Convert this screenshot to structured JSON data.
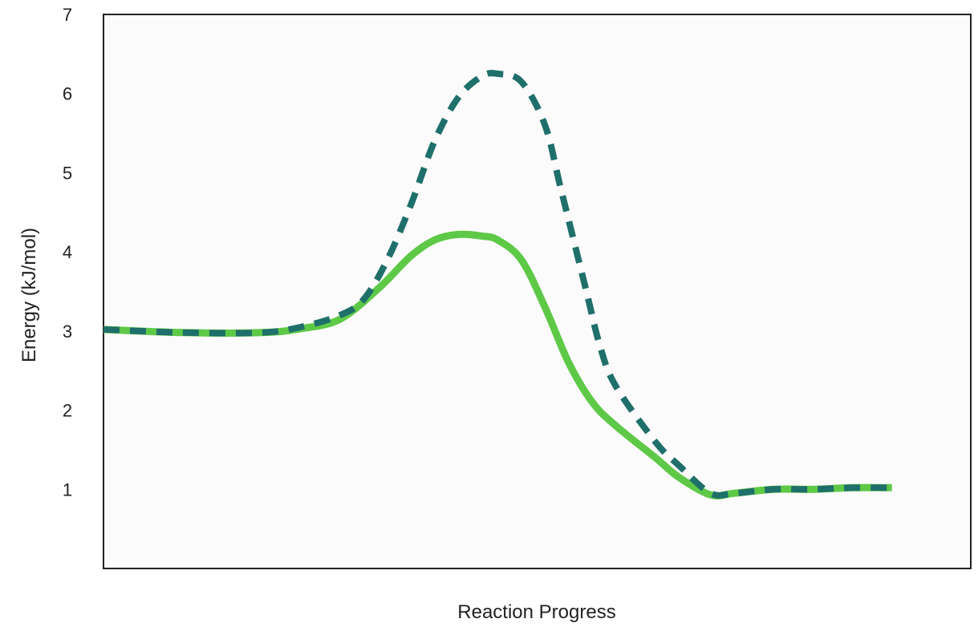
{
  "chart_data": {
    "type": "line",
    "title": "",
    "xlabel": "Reaction Progress",
    "ylabel": "Energy (kJ/mol)",
    "ylim": [
      0,
      7
    ],
    "xlim": [
      0,
      1.1
    ],
    "yticks": [
      "1",
      "2",
      "3",
      "4",
      "5",
      "6",
      "7"
    ],
    "grid": false,
    "legend": "none",
    "series": [
      {
        "style": "dashed",
        "color": "#1f6f6b",
        "x": [
          0,
          0.1,
          0.2,
          0.25,
          0.3,
          0.33,
          0.36,
          0.39,
          0.42,
          0.45,
          0.48,
          0.5,
          0.53,
          0.56,
          0.58,
          0.61,
          0.63,
          0.65,
          0.7,
          0.73,
          0.77,
          0.8,
          0.85,
          0.9,
          0.95,
          1.0
        ],
        "y": [
          3.02,
          2.98,
          2.98,
          3.05,
          3.2,
          3.4,
          3.9,
          4.6,
          5.4,
          5.95,
          6.22,
          6.25,
          6.15,
          5.6,
          4.8,
          3.6,
          2.8,
          2.3,
          1.6,
          1.3,
          0.95,
          0.95,
          1.0,
          1.0,
          1.02,
          1.02
        ]
      },
      {
        "style": "solid",
        "color": "#5ec947",
        "x": [
          0,
          0.1,
          0.2,
          0.25,
          0.3,
          0.35,
          0.39,
          0.42,
          0.45,
          0.48,
          0.5,
          0.53,
          0.56,
          0.59,
          0.62,
          0.65,
          0.7,
          0.73,
          0.77,
          0.8,
          0.85,
          0.9,
          0.95,
          1.0
        ],
        "y": [
          3.02,
          2.98,
          2.98,
          3.03,
          3.15,
          3.55,
          3.95,
          4.15,
          4.22,
          4.2,
          4.15,
          3.9,
          3.3,
          2.6,
          2.1,
          1.8,
          1.4,
          1.15,
          0.93,
          0.95,
          1.0,
          1.0,
          1.02,
          1.02
        ]
      }
    ]
  }
}
